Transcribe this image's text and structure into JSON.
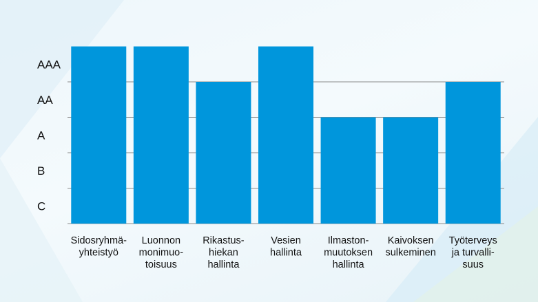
{
  "chart_data": {
    "type": "bar",
    "y_scale": [
      "C",
      "B",
      "A",
      "AA",
      "AAA"
    ],
    "categories": [
      [
        "Sidosryhmä-",
        "yhteistyö"
      ],
      [
        "Luonnon",
        "monimuo-",
        "toisuus"
      ],
      [
        "Rikastus-",
        "hiekan",
        "hallinta"
      ],
      [
        "Vesien",
        "hallinta"
      ],
      [
        "Ilmaston-",
        "muutoksen",
        "hallinta"
      ],
      [
        "Kaivoksen",
        "sulkeminen"
      ],
      [
        "Työterveys",
        "ja turvalli-",
        "suus"
      ]
    ],
    "values": [
      "AAA",
      "AAA",
      "AA",
      "AAA",
      "A",
      "A",
      "AA"
    ],
    "bar_color": "#0096dc",
    "grid": true,
    "legend": "none"
  }
}
